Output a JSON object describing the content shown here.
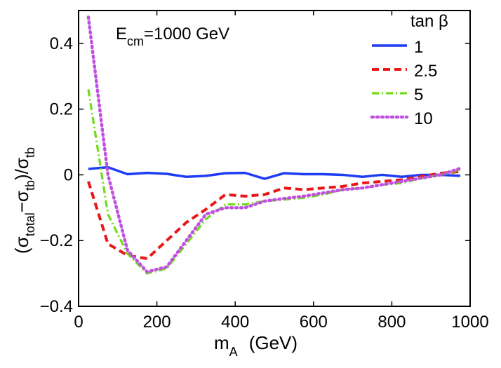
{
  "chart_data": {
    "type": "line",
    "x": [
      25,
      75,
      125,
      175,
      225,
      275,
      325,
      375,
      425,
      475,
      525,
      575,
      625,
      675,
      725,
      775,
      825,
      875,
      925,
      975
    ],
    "series": [
      {
        "name": "1",
        "color": "#1f3cf5",
        "dash": "solid",
        "values": [
          0.018,
          0.023,
          0.002,
          0.006,
          0.003,
          -0.006,
          -0.003,
          0.005,
          0.006,
          -0.012,
          0.005,
          0.002,
          0.002,
          0.0,
          -0.006,
          0.0,
          -0.006,
          0.0,
          0.0,
          -0.003
        ]
      },
      {
        "name": "2.5",
        "color": "#e81818",
        "dash": "dashed",
        "values": [
          -0.02,
          -0.21,
          -0.245,
          -0.255,
          -0.2,
          -0.145,
          -0.105,
          -0.06,
          -0.065,
          -0.06,
          -0.04,
          -0.045,
          -0.04,
          -0.035,
          -0.025,
          -0.02,
          -0.015,
          -0.005,
          0.005,
          0.01
        ]
      },
      {
        "name": "5",
        "color": "#6fdc1a",
        "dash": "dashdot",
        "values": [
          0.26,
          -0.12,
          -0.24,
          -0.3,
          -0.285,
          -0.21,
          -0.135,
          -0.09,
          -0.09,
          -0.08,
          -0.075,
          -0.07,
          -0.06,
          -0.045,
          -0.04,
          -0.03,
          -0.025,
          -0.01,
          0.0,
          0.015
        ]
      },
      {
        "name": "10",
        "color": "#c050e0",
        "dash": "dotted",
        "values": [
          0.48,
          0.0,
          -0.23,
          -0.295,
          -0.28,
          -0.2,
          -0.12,
          -0.1,
          -0.1,
          -0.08,
          -0.072,
          -0.065,
          -0.055,
          -0.045,
          -0.04,
          -0.03,
          -0.02,
          -0.01,
          0.0,
          0.02
        ]
      }
    ],
    "xlim": [
      0,
      1000
    ],
    "ylim": [
      -0.4,
      0.5
    ],
    "xticks": [
      0,
      200,
      400,
      600,
      800,
      1000
    ],
    "xtick_labels": [
      "0",
      "200",
      "400",
      "600",
      "800",
      "1000"
    ],
    "yticks": [
      -0.4,
      -0.2,
      0,
      0.2,
      0.4
    ],
    "ytick_labels": [
      "−0.4",
      "−0.2",
      "0",
      "0.2",
      "0.4"
    ],
    "xlabel": {
      "main": "m",
      "sub": "A",
      "rest": "(GeV)"
    },
    "ylabel": {
      "open": "(σ",
      "sub1": "total",
      "mid": "−σ",
      "sub2": "tb",
      "close": ")/σ",
      "sub3": "tb"
    },
    "annotation": {
      "main": "E",
      "sub": "cm",
      "rest": "=1000 GeV"
    },
    "legend_title": "tan β",
    "legend_position": "top-right",
    "grid": false
  }
}
